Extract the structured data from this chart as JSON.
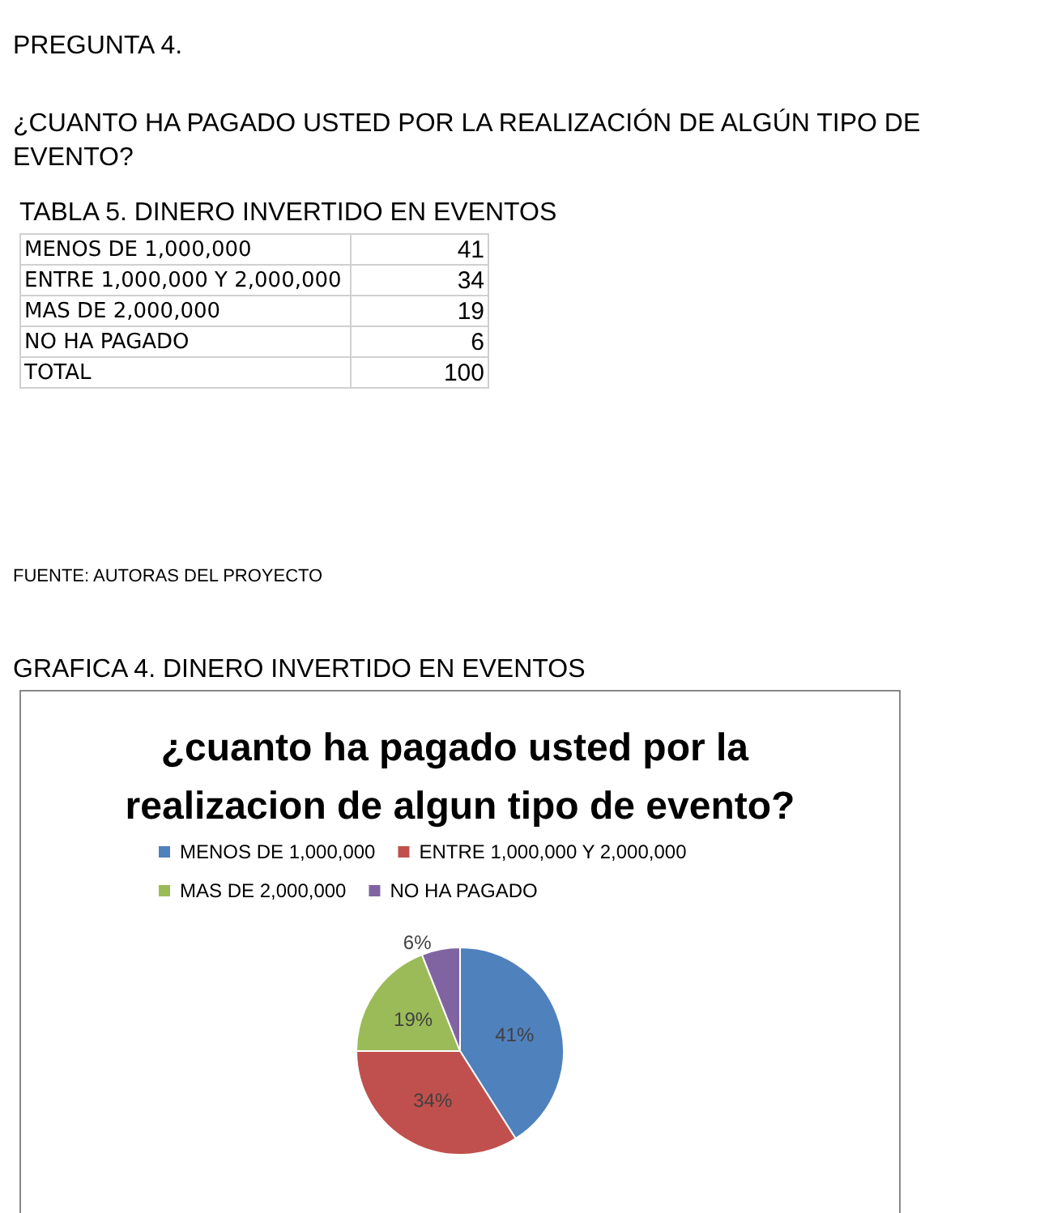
{
  "chart_data": {
    "type": "pie",
    "title": "¿cuanto ha pagado usted por la realizacion de algun tipo de evento?",
    "categories": [
      "MENOS DE 1,000,000",
      "ENTRE 1,000,000 Y 2,000,000",
      "MAS DE 2,000,000",
      "NO HA PAGADO"
    ],
    "values": [
      41,
      34,
      19,
      6
    ],
    "colors": [
      "#4f81bd",
      "#c0504d",
      "#9bbb59",
      "#8064a2"
    ],
    "value_labels": [
      "41%",
      "34%",
      "19%",
      "6%"
    ],
    "legend": "top",
    "annotations": [
      "PREGUNTA 4.",
      "¿CUANTO HA PAGADO USTED POR LA REALIZACIÓN DE ALGÚN TIPO DE EVENTO?",
      "TABLA 5. DINERO INVERTIDO EN EVENTOS",
      "TOTAL",
      "100",
      "FUENTE:  AUTORAS DEL PROYECTO",
      "GRAFICA 4. DINERO INVERTIDO EN EVENTOS",
      "41",
      "34",
      "19",
      "6"
    ]
  }
}
